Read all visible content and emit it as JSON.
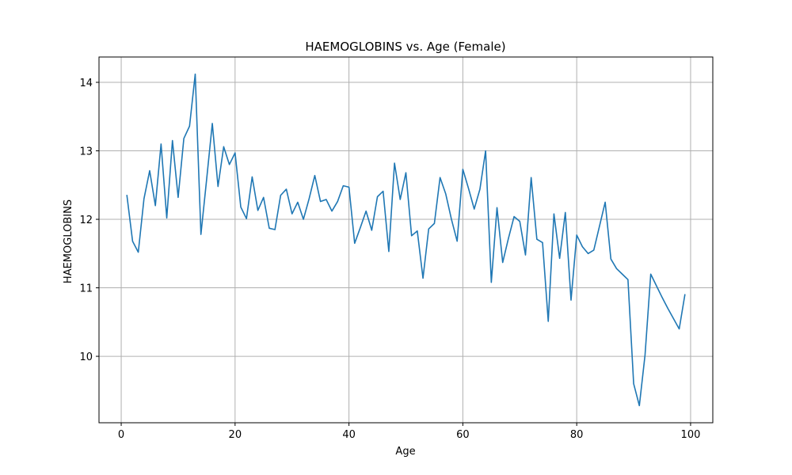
{
  "chart_data": {
    "type": "line",
    "title": "HAEMOGLOBINS vs. Age (Female)",
    "xlabel": "Age",
    "ylabel": "HAEMOGLOBINS",
    "xlim": [
      -3.9,
      103.9
    ],
    "ylim": [
      9.03,
      14.37
    ],
    "xticks": [
      0,
      20,
      40,
      60,
      80,
      100
    ],
    "yticks": [
      10,
      11,
      12,
      13,
      14
    ],
    "xtick_labels": [
      "0",
      "20",
      "40",
      "60",
      "80",
      "100"
    ],
    "ytick_labels": [
      "10",
      "11",
      "12",
      "13",
      "14"
    ],
    "grid": true,
    "legend": "none",
    "line_color": "#1f77b4",
    "series": [
      {
        "x": [
          1,
          2,
          3,
          4,
          5,
          6,
          7,
          8,
          9,
          10,
          11,
          12,
          13,
          14,
          15,
          16,
          17,
          18,
          19,
          20,
          21,
          22,
          23,
          24,
          25,
          26,
          27,
          28,
          29,
          30,
          31,
          32,
          33,
          34,
          35,
          36,
          37,
          38,
          39,
          40,
          41,
          42,
          43,
          44,
          45,
          46,
          47,
          48,
          49,
          50,
          51,
          52,
          53,
          54,
          55,
          56,
          57,
          58,
          59,
          60,
          61,
          62,
          63,
          64,
          65,
          66,
          67,
          68,
          69,
          70,
          71,
          72,
          73,
          74,
          75,
          76,
          77,
          78,
          79,
          80,
          81,
          82,
          83,
          84,
          85,
          86,
          87,
          88,
          89,
          90,
          91,
          92,
          93,
          94,
          95,
          96,
          97,
          98,
          99
        ],
        "values": [
          12.35,
          11.68,
          11.52,
          12.3,
          12.71,
          12.2,
          13.1,
          12.02,
          13.15,
          12.32,
          13.18,
          13.36,
          14.12,
          11.78,
          12.58,
          13.4,
          12.48,
          13.06,
          12.8,
          12.97,
          12.18,
          12.01,
          12.62,
          12.13,
          12.32,
          11.87,
          11.85,
          12.35,
          12.44,
          12.08,
          12.25,
          12.0,
          12.3,
          12.64,
          12.26,
          12.29,
          12.12,
          12.26,
          12.49,
          12.47,
          11.65,
          11.88,
          12.12,
          11.84,
          12.33,
          12.41,
          11.53,
          12.82,
          12.29,
          12.68,
          11.76,
          11.83,
          11.14,
          11.86,
          11.94,
          12.61,
          12.37,
          12.0,
          11.68,
          12.73,
          12.45,
          12.15,
          12.44,
          13.0,
          11.08,
          12.17,
          11.37,
          11.72,
          12.04,
          11.97,
          11.48,
          12.61,
          11.71,
          11.66,
          10.51,
          12.08,
          11.43,
          12.1,
          10.82,
          11.77,
          11.6,
          11.5,
          11.55,
          11.9,
          12.25,
          11.42,
          11.28,
          11.2,
          11.12,
          9.6,
          9.28,
          10.02,
          11.2,
          11.03,
          10.86,
          10.7,
          10.55,
          10.4,
          10.9
        ]
      }
    ]
  }
}
